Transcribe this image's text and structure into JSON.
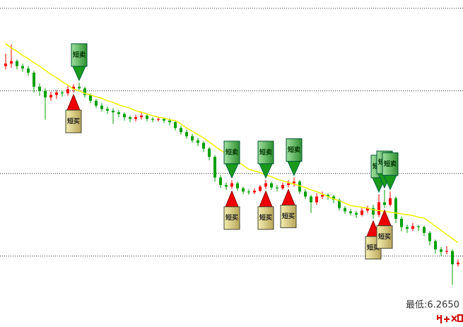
{
  "chart_data": {
    "type": "candlestick",
    "ylim": [
      6.214,
      6.61
    ],
    "yticks": [
      6.3,
      6.4,
      6.5,
      6.6
    ],
    "grid": true,
    "up_color": "#ff0000",
    "down_color": "#00a000",
    "ma_color": "#f0f000",
    "candles": [
      [
        6.53,
        6.545,
        6.526,
        6.533
      ],
      [
        6.533,
        6.556,
        6.528,
        6.536
      ],
      [
        6.536,
        6.538,
        6.526,
        6.53
      ],
      [
        6.53,
        6.533,
        6.523,
        6.527
      ],
      [
        6.527,
        6.53,
        6.518,
        6.522
      ],
      [
        6.522,
        6.524,
        6.498,
        6.505
      ],
      [
        6.505,
        6.509,
        6.494,
        6.5
      ],
      [
        6.5,
        6.503,
        6.465,
        6.492
      ],
      [
        6.492,
        6.499,
        6.488,
        6.495
      ],
      [
        6.495,
        6.501,
        6.49,
        6.498
      ],
      [
        6.498,
        6.5,
        6.493,
        6.497
      ],
      [
        6.497,
        6.506,
        6.494,
        6.502
      ],
      [
        6.502,
        6.508,
        6.498,
        6.505
      ],
      [
        6.505,
        6.51,
        6.499,
        6.503
      ],
      [
        6.503,
        6.505,
        6.492,
        6.495
      ],
      [
        6.495,
        6.497,
        6.485,
        6.488
      ],
      [
        6.488,
        6.49,
        6.479,
        6.482
      ],
      [
        6.482,
        6.485,
        6.475,
        6.478
      ],
      [
        6.478,
        6.481,
        6.472,
        6.476
      ],
      [
        6.476,
        6.479,
        6.46,
        6.474
      ],
      [
        6.474,
        6.477,
        6.468,
        6.472
      ],
      [
        6.472,
        6.474,
        6.464,
        6.468
      ],
      [
        6.468,
        6.47,
        6.462,
        6.466
      ],
      [
        6.466,
        6.471,
        6.463,
        6.468
      ],
      [
        6.468,
        6.475,
        6.465,
        6.47
      ],
      [
        6.47,
        6.472,
        6.463,
        6.466
      ],
      [
        6.466,
        6.468,
        6.462,
        6.465
      ],
      [
        6.465,
        6.469,
        6.463,
        6.466
      ],
      [
        6.466,
        6.468,
        6.461,
        6.464
      ],
      [
        6.464,
        6.467,
        6.458,
        6.462
      ],
      [
        6.462,
        6.464,
        6.452,
        6.455
      ],
      [
        6.455,
        6.458,
        6.447,
        6.45
      ],
      [
        6.45,
        6.453,
        6.442,
        6.445
      ],
      [
        6.445,
        6.448,
        6.437,
        6.44
      ],
      [
        6.44,
        6.443,
        6.433,
        6.437
      ],
      [
        6.437,
        6.439,
        6.426,
        6.43
      ],
      [
        6.43,
        6.432,
        6.416,
        6.42
      ],
      [
        6.42,
        6.422,
        6.39,
        6.395
      ],
      [
        6.395,
        6.398,
        6.382,
        6.386
      ],
      [
        6.386,
        6.389,
        6.38,
        6.384
      ],
      [
        6.384,
        6.392,
        6.381,
        6.388
      ],
      [
        6.388,
        6.39,
        6.379,
        6.382
      ],
      [
        6.382,
        6.384,
        6.375,
        6.378
      ],
      [
        6.378,
        6.381,
        6.374,
        6.377
      ],
      [
        6.377,
        6.382,
        6.375,
        6.379
      ],
      [
        6.379,
        6.386,
        6.377,
        6.384
      ],
      [
        6.384,
        6.392,
        6.381,
        6.388
      ],
      [
        6.388,
        6.39,
        6.38,
        6.383
      ],
      [
        6.383,
        6.386,
        6.378,
        6.382
      ],
      [
        6.382,
        6.389,
        6.38,
        6.386
      ],
      [
        6.386,
        6.392,
        6.383,
        6.388
      ],
      [
        6.388,
        6.395,
        6.384,
        6.39
      ],
      [
        6.39,
        6.392,
        6.375,
        6.378
      ],
      [
        6.378,
        6.381,
        6.369,
        6.372
      ],
      [
        6.372,
        6.374,
        6.352,
        6.365
      ],
      [
        6.365,
        6.376,
        6.362,
        6.372
      ],
      [
        6.372,
        6.378,
        6.369,
        6.374
      ],
      [
        6.374,
        6.376,
        6.368,
        6.372
      ],
      [
        6.372,
        6.374,
        6.364,
        6.368
      ],
      [
        6.368,
        6.37,
        6.355,
        6.358
      ],
      [
        6.358,
        6.36,
        6.351,
        6.354
      ],
      [
        6.354,
        6.357,
        6.349,
        6.352
      ],
      [
        6.352,
        6.355,
        6.346,
        6.35
      ],
      [
        6.35,
        6.358,
        6.348,
        6.355
      ],
      [
        6.355,
        6.361,
        6.352,
        6.358
      ],
      [
        6.358,
        6.362,
        6.345,
        6.35
      ],
      [
        6.35,
        6.375,
        6.347,
        6.365
      ],
      [
        6.365,
        6.38,
        6.358,
        6.362
      ],
      [
        6.362,
        6.378,
        6.36,
        6.37
      ],
      [
        6.37,
        6.372,
        6.34,
        6.345
      ],
      [
        6.345,
        6.348,
        6.33,
        6.335
      ],
      [
        6.335,
        6.338,
        6.328,
        6.333
      ],
      [
        6.333,
        6.34,
        6.33,
        6.336
      ],
      [
        6.336,
        6.338,
        6.33,
        6.335
      ],
      [
        6.335,
        6.337,
        6.324,
        6.328
      ],
      [
        6.328,
        6.33,
        6.313,
        6.318
      ],
      [
        6.318,
        6.32,
        6.303,
        6.308
      ],
      [
        6.308,
        6.311,
        6.3,
        6.305
      ],
      [
        6.305,
        6.312,
        6.302,
        6.306
      ],
      [
        6.306,
        6.308,
        6.265,
        6.29
      ],
      [
        6.29,
        6.296,
        6.287,
        6.292
      ]
    ],
    "ma": [
      6.557,
      6.552,
      6.548,
      6.543,
      6.539,
      6.534,
      6.53,
      6.525,
      6.52,
      6.516,
      6.511,
      6.507,
      6.502,
      6.5,
      6.497,
      6.495,
      6.493,
      6.491,
      6.488,
      6.486,
      6.483,
      6.481,
      6.479,
      6.476,
      6.474,
      6.472,
      6.47,
      6.468,
      6.467,
      6.465,
      6.464,
      6.46,
      6.455,
      6.451,
      6.447,
      6.443,
      6.438,
      6.433,
      6.428,
      6.424,
      6.419,
      6.414,
      6.41,
      6.405,
      6.403,
      6.401,
      6.398,
      6.396,
      6.393,
      6.391,
      6.389,
      6.387,
      6.385,
      6.383,
      6.38,
      6.378,
      6.375,
      6.372,
      6.369,
      6.367,
      6.364,
      6.361,
      6.36,
      6.359,
      6.358,
      6.356,
      6.355,
      6.354,
      6.353,
      6.352,
      6.351,
      6.35,
      6.349,
      6.347,
      6.346,
      6.341,
      6.336,
      6.331,
      6.326,
      6.321,
      6.316
    ],
    "signals": [
      {
        "index": 13,
        "kind": "sell",
        "label": "短卖"
      },
      {
        "index": 40,
        "kind": "sell",
        "label": "短卖"
      },
      {
        "index": 46,
        "kind": "sell",
        "label": "短卖"
      },
      {
        "index": 51,
        "kind": "sell",
        "label": "短卖"
      },
      {
        "index": 66,
        "kind": "sell",
        "label": "短卖"
      },
      {
        "index": 67,
        "kind": "sell",
        "label": "短卖"
      },
      {
        "index": 68,
        "kind": "sell",
        "label": "短卖"
      },
      {
        "index": 12,
        "kind": "buy",
        "label": "短买"
      },
      {
        "index": 40,
        "kind": "buy",
        "label": "短买"
      },
      {
        "index": 46,
        "kind": "buy",
        "label": "短买"
      },
      {
        "index": 50,
        "kind": "buy",
        "label": "短买"
      },
      {
        "index": 65,
        "kind": "buy",
        "label": "短买"
      },
      {
        "index": 67,
        "kind": "buy",
        "label": "短买"
      }
    ],
    "low_label": "最低:6.2650"
  }
}
